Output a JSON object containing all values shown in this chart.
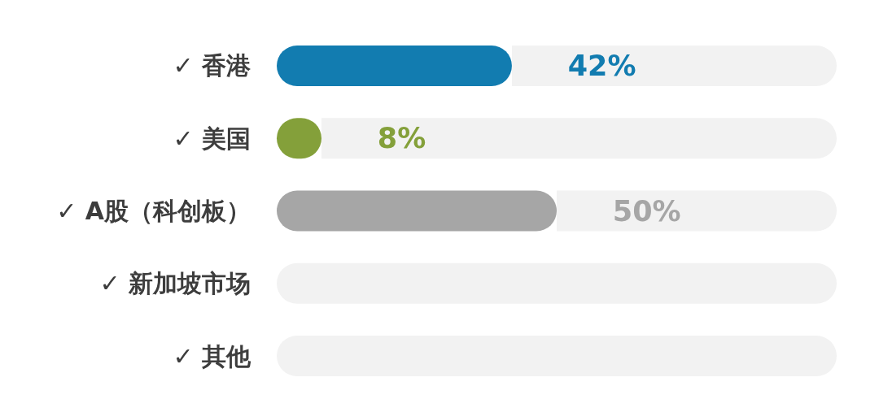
{
  "chart_data": {
    "type": "bar",
    "orientation": "horizontal",
    "stacked": true,
    "categories": [
      "✓ 香港",
      "✓ 美国",
      "✓ A股（科创板）",
      "✓ 新加坡市场",
      "✓ 其他"
    ],
    "series": [
      {
        "values": [
          42,
          8,
          50,
          0,
          0
        ],
        "colors": [
          "#127cb0",
          "#84a03a",
          "#a6a6a6",
          null,
          null
        ],
        "value_labels": [
          "42%",
          "8%",
          "50%",
          null,
          null
        ]
      },
      {
        "values": [
          58,
          92,
          50,
          100,
          100
        ],
        "color": "#f2f2f2"
      }
    ],
    "xlim": [
      0,
      100
    ],
    "tick_labels": "y"
  }
}
